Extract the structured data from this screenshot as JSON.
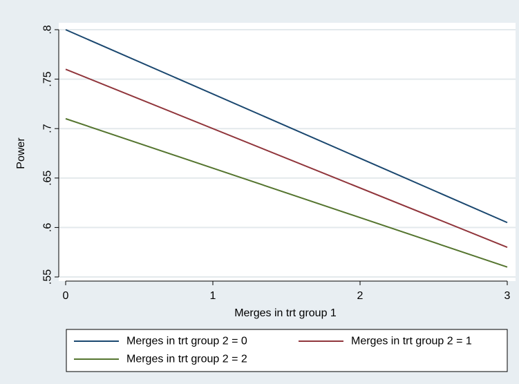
{
  "chart_data": {
    "type": "line",
    "title": "",
    "xlabel": "Merges in trt group 1",
    "ylabel": "Power",
    "xlim": [
      0,
      3
    ],
    "ylim": [
      0.55,
      0.8
    ],
    "x_ticks": [
      0,
      1,
      2,
      3
    ],
    "x_tick_labels": [
      "0",
      "1",
      "2",
      "3"
    ],
    "y_ticks": [
      0.55,
      0.6,
      0.65,
      0.7,
      0.75,
      0.8
    ],
    "y_tick_labels": [
      ".55",
      ".6",
      ".65",
      ".7",
      ".75",
      ".8"
    ],
    "grid": true,
    "legend_position": "bottom",
    "series": [
      {
        "name": "Merges in trt group 2 = 0",
        "color": "#1a476f",
        "x": [
          0,
          3
        ],
        "values": [
          0.8,
          0.605
        ]
      },
      {
        "name": "Merges in trt group 2 = 1",
        "color": "#90353b",
        "x": [
          0,
          3
        ],
        "values": [
          0.76,
          0.58
        ]
      },
      {
        "name": "Merges in trt group 2 = 2",
        "color": "#55752f",
        "x": [
          0,
          3
        ],
        "values": [
          0.71,
          0.56
        ]
      }
    ]
  }
}
